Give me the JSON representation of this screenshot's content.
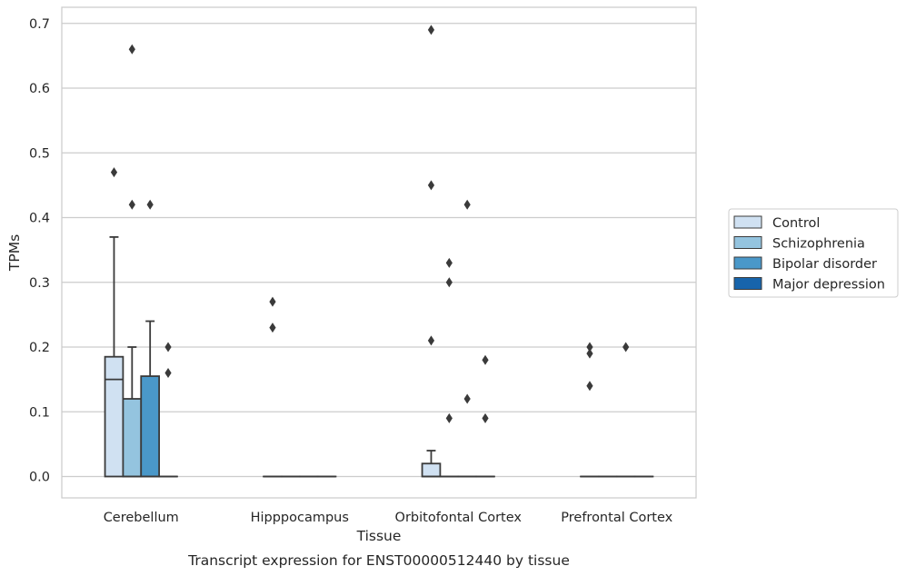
{
  "chart_data": {
    "type": "box",
    "caption": "Transcript expression for ENST00000512440 by tissue",
    "xlabel": "Tissue",
    "ylabel": "TPMs",
    "ylim": [
      -0.033,
      0.725
    ],
    "yticks": [
      0.0,
      0.1,
      0.2,
      0.3,
      0.4,
      0.5,
      0.6,
      0.7
    ],
    "ytick_labels": [
      "0.0",
      "0.1",
      "0.2",
      "0.3",
      "0.4",
      "0.5",
      "0.6",
      "0.7"
    ],
    "grid": true,
    "legend_position": "right-center",
    "categories": [
      "Cerebellum",
      "Hipppocampus",
      "Orbitofontal Cortex",
      "Prefrontal Cortex"
    ],
    "series": [
      {
        "name": "Control",
        "color": "#d0e1f2",
        "boxes": [
          {
            "q1": 0.0,
            "median": 0.15,
            "q3": 0.185,
            "whisker_low": 0.0,
            "whisker_high": 0.37,
            "outliers": [
              0.47
            ]
          },
          {
            "q1": 0.0,
            "median": 0.0,
            "q3": 0.0,
            "whisker_low": 0.0,
            "whisker_high": 0.0,
            "outliers": [
              0.27,
              0.23
            ]
          },
          {
            "q1": 0.0,
            "median": 0.0,
            "q3": 0.02,
            "whisker_low": 0.0,
            "whisker_high": 0.04,
            "outliers": [
              0.69,
              0.45,
              0.21
            ]
          },
          {
            "q1": 0.0,
            "median": 0.0,
            "q3": 0.0,
            "whisker_low": 0.0,
            "whisker_high": 0.0,
            "outliers": [
              0.2,
              0.19,
              0.14
            ]
          }
        ]
      },
      {
        "name": "Schizophrenia",
        "color": "#94c4df",
        "boxes": [
          {
            "q1": 0.0,
            "median": 0.0,
            "q3": 0.12,
            "whisker_low": 0.0,
            "whisker_high": 0.2,
            "outliers": [
              0.66,
              0.42
            ]
          },
          {
            "q1": 0.0,
            "median": 0.0,
            "q3": 0.0,
            "whisker_low": 0.0,
            "whisker_high": 0.0,
            "outliers": []
          },
          {
            "q1": 0.0,
            "median": 0.0,
            "q3": 0.0,
            "whisker_low": 0.0,
            "whisker_high": 0.0,
            "outliers": [
              0.33,
              0.3,
              0.09
            ]
          },
          {
            "q1": 0.0,
            "median": 0.0,
            "q3": 0.0,
            "whisker_low": 0.0,
            "whisker_high": 0.0,
            "outliers": []
          }
        ]
      },
      {
        "name": "Bipolar disorder",
        "color": "#4a98c9",
        "boxes": [
          {
            "q1": 0.0,
            "median": 0.0,
            "q3": 0.155,
            "whisker_low": 0.0,
            "whisker_high": 0.24,
            "outliers": [
              0.42
            ]
          },
          {
            "q1": 0.0,
            "median": 0.0,
            "q3": 0.0,
            "whisker_low": 0.0,
            "whisker_high": 0.0,
            "outliers": []
          },
          {
            "q1": 0.0,
            "median": 0.0,
            "q3": 0.0,
            "whisker_low": 0.0,
            "whisker_high": 0.0,
            "outliers": [
              0.42,
              0.12
            ]
          },
          {
            "q1": 0.0,
            "median": 0.0,
            "q3": 0.0,
            "whisker_low": 0.0,
            "whisker_high": 0.0,
            "outliers": [
              0.2
            ]
          }
        ]
      },
      {
        "name": "Major depression",
        "color": "#1764ab",
        "boxes": [
          {
            "q1": 0.0,
            "median": 0.0,
            "q3": 0.0,
            "whisker_low": 0.0,
            "whisker_high": 0.0,
            "outliers": [
              0.2,
              0.16
            ]
          },
          {
            "q1": 0.0,
            "median": 0.0,
            "q3": 0.0,
            "whisker_low": 0.0,
            "whisker_high": 0.0,
            "outliers": []
          },
          {
            "q1": 0.0,
            "median": 0.0,
            "q3": 0.0,
            "whisker_low": 0.0,
            "whisker_high": 0.0,
            "outliers": [
              0.18,
              0.09
            ]
          },
          {
            "q1": 0.0,
            "median": 0.0,
            "q3": 0.0,
            "whisker_low": 0.0,
            "whisker_high": 0.0,
            "outliers": []
          }
        ]
      }
    ]
  }
}
